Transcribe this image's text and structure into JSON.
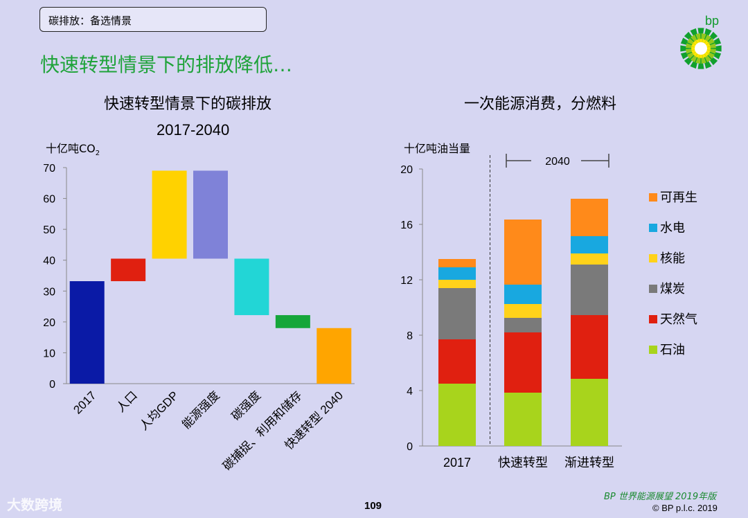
{
  "slide": {
    "tag": "碳排放：备选情景",
    "headline": "快速转型情景下的排放降低…",
    "logo_text": "bp",
    "page_number": "109",
    "publication": "BP 世界能源展望 2019年版",
    "copyright": "© BP p.l.c. 2019",
    "watermark": "大数跨境"
  },
  "chart_data": [
    {
      "type": "bar",
      "subtype": "waterfall",
      "title": "快速转型情景下的碳排放",
      "subtitle": "2017-2040",
      "ylabel": "十亿吨CO",
      "ylabel_sub": "2",
      "ylim": [
        0,
        70
      ],
      "yticks": [
        0,
        10,
        20,
        30,
        40,
        50,
        60,
        70
      ],
      "grid": false,
      "categories": [
        "2017",
        "人口",
        "人均GDP",
        "能源强度",
        "碳强度",
        "碳捕捉、利用和储存",
        "快速转型 2040"
      ],
      "bars": [
        {
          "low": 0,
          "high": 33.2,
          "color": "#0a1aa6"
        },
        {
          "low": 33.2,
          "high": 40.5,
          "color": "#e02010"
        },
        {
          "low": 40.5,
          "high": 69,
          "color": "#ffd200"
        },
        {
          "low": 40.5,
          "high": 69,
          "color": "#7f82d8"
        },
        {
          "low": 22.2,
          "high": 40.5,
          "color": "#22d6d6"
        },
        {
          "low": 18,
          "high": 22.2,
          "color": "#16a63a"
        },
        {
          "low": 0,
          "high": 18,
          "color": "#ffa500"
        }
      ]
    },
    {
      "type": "bar",
      "subtype": "stacked",
      "title": "一次能源消费，分燃料",
      "ylabel": "十亿吨油当量",
      "ylim": [
        0,
        20
      ],
      "yticks": [
        0,
        4,
        8,
        12,
        16,
        20
      ],
      "grid": false,
      "categories": [
        "2017",
        "快速转型",
        "渐进转型"
      ],
      "bracket_label": "2040",
      "legend_position": "right",
      "series": [
        {
          "name": "石油",
          "color": "#a8d41c",
          "values": [
            4.5,
            3.85,
            4.85
          ]
        },
        {
          "name": "天然气",
          "color": "#e02010",
          "values": [
            3.2,
            4.35,
            4.6
          ]
        },
        {
          "name": "煤炭",
          "color": "#7a7a7a",
          "values": [
            3.7,
            1.05,
            3.65
          ]
        },
        {
          "name": "核能",
          "color": "#ffd21a",
          "values": [
            0.6,
            1.0,
            0.8
          ]
        },
        {
          "name": "水电",
          "color": "#18a8e0",
          "values": [
            0.9,
            1.4,
            1.25
          ]
        },
        {
          "name": "可再生",
          "color": "#ff8a1a",
          "values": [
            0.6,
            4.7,
            2.7
          ]
        }
      ]
    }
  ]
}
